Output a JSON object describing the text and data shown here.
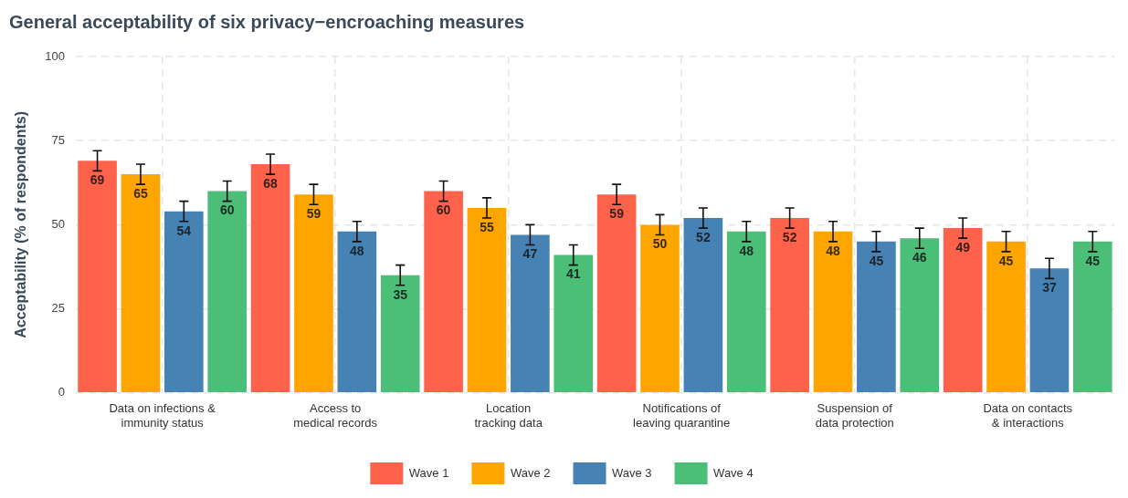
{
  "chart_data": {
    "type": "bar",
    "title": "General acceptability of six privacy−encroaching measures",
    "ylabel": "Acceptability (% of respondents)",
    "categories": [
      "Data on infections &\nimmunity status",
      "Access to\nmedical records",
      "Location\ntracking data",
      "Notifications of\nleaving quarantine",
      "Suspension of\ndata protection",
      "Data on contacts\n& interactions"
    ],
    "series": [
      {
        "name": "Wave 1",
        "color": "#ff624a",
        "values": [
          69,
          68,
          60,
          59,
          52,
          49
        ],
        "errors": [
          3,
          3,
          3,
          3,
          3,
          3
        ]
      },
      {
        "name": "Wave 2",
        "color": "#ffa500",
        "values": [
          65,
          59,
          55,
          50,
          48,
          45
        ],
        "errors": [
          3,
          3,
          3,
          3,
          3,
          3
        ]
      },
      {
        "name": "Wave 3",
        "color": "#4682b4",
        "values": [
          54,
          48,
          47,
          52,
          45,
          37
        ],
        "errors": [
          3,
          3,
          3,
          3,
          3,
          3
        ]
      },
      {
        "name": "Wave 4",
        "color": "#4bbe78",
        "values": [
          60,
          35,
          41,
          48,
          46,
          45
        ],
        "errors": [
          3,
          3,
          3,
          3,
          3,
          3
        ]
      }
    ],
    "ylim": [
      0,
      100
    ],
    "yticks": [
      0,
      25,
      50,
      75,
      100
    ],
    "grid": true,
    "legend": "bottom",
    "data_labels": true
  }
}
